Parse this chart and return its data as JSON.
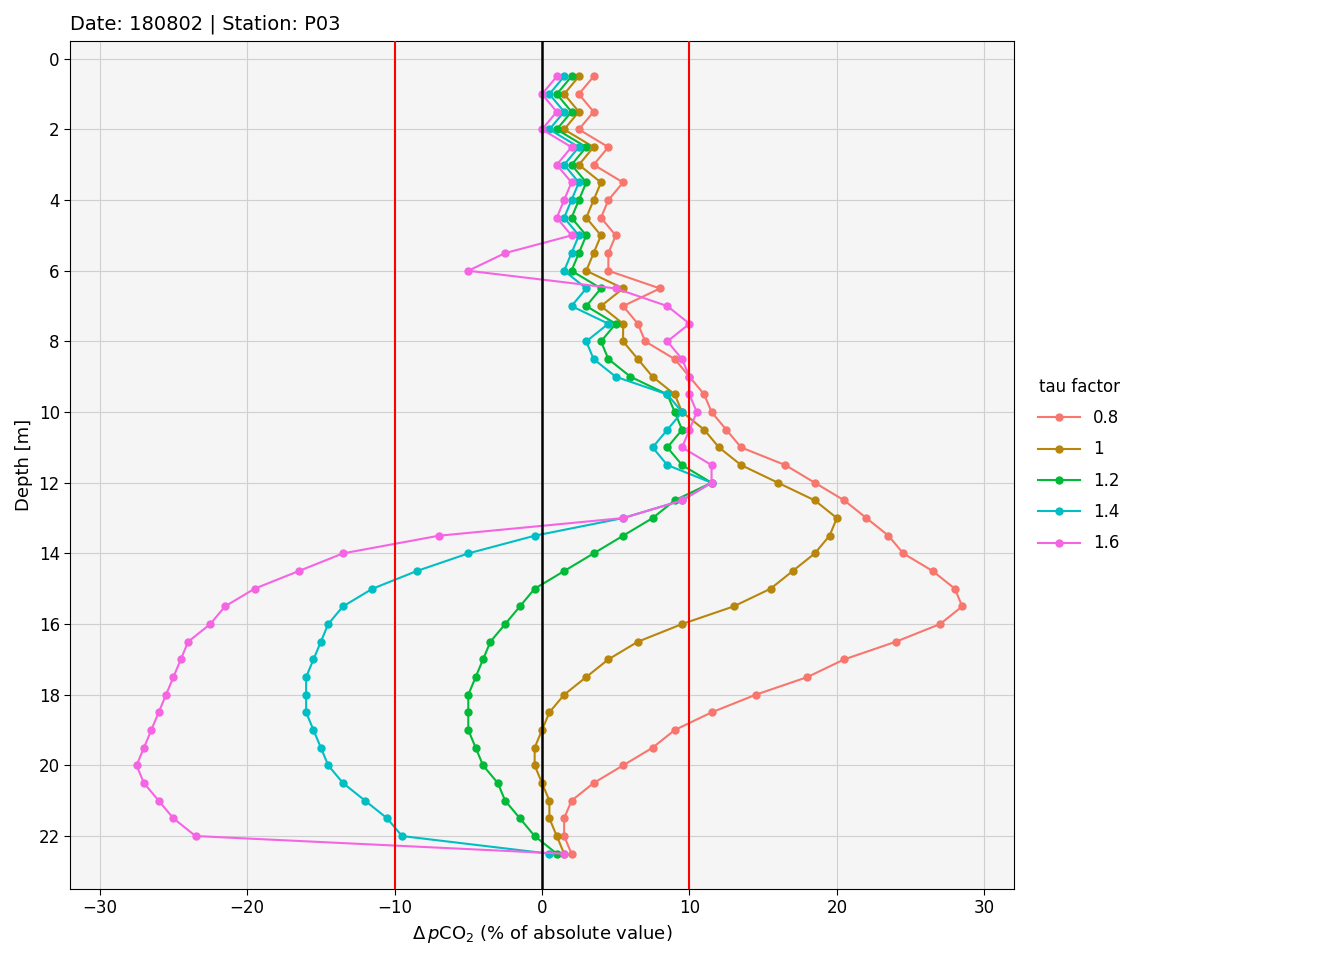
{
  "title": "Date: 180802 | Station: P03",
  "xlabel": "Δ pCO₂ (% of absolute value)",
  "ylabel": "Depth [m]",
  "xlim": [
    -32,
    32
  ],
  "ylim": [
    23.5,
    -0.5
  ],
  "xticks": [
    -30,
    -20,
    -10,
    0,
    10,
    20,
    30
  ],
  "yticks": [
    0,
    2,
    4,
    6,
    8,
    10,
    12,
    14,
    16,
    18,
    20,
    22
  ],
  "vlines": [
    -10,
    0,
    10
  ],
  "vline_colors": [
    "red",
    "black",
    "red"
  ],
  "background_color": "#ffffff",
  "panel_color": "#f5f5f5",
  "grid_color": "#d0d0d0",
  "series": [
    {
      "label": "0.8",
      "color": "#F8766D",
      "depth": [
        0.5,
        1.0,
        1.5,
        2.0,
        2.5,
        3.0,
        3.5,
        4.0,
        4.5,
        5.0,
        5.5,
        6.0,
        6.5,
        7.0,
        7.5,
        8.0,
        8.5,
        9.0,
        9.5,
        10.0,
        10.5,
        11.0,
        11.5,
        12.0,
        12.5,
        13.0,
        13.5,
        14.0,
        14.5,
        15.0,
        15.5,
        16.0,
        16.5,
        17.0,
        17.5,
        18.0,
        18.5,
        19.0,
        19.5,
        20.0,
        20.5,
        21.0,
        21.5,
        22.0,
        22.5
      ],
      "values": [
        3.5,
        2.5,
        3.5,
        2.5,
        4.5,
        3.5,
        5.5,
        4.5,
        4.0,
        5.0,
        4.5,
        4.5,
        8.0,
        5.5,
        6.5,
        7.0,
        9.0,
        10.0,
        11.0,
        11.5,
        12.5,
        13.5,
        16.5,
        18.5,
        20.5,
        22.0,
        23.5,
        24.5,
        26.5,
        28.0,
        28.5,
        27.0,
        24.0,
        20.5,
        18.0,
        14.5,
        11.5,
        9.0,
        7.5,
        5.5,
        3.5,
        2.0,
        1.5,
        1.5,
        2.0
      ]
    },
    {
      "label": "1",
      "color": "#B8860B",
      "depth": [
        0.5,
        1.0,
        1.5,
        2.0,
        2.5,
        3.0,
        3.5,
        4.0,
        4.5,
        5.0,
        5.5,
        6.0,
        6.5,
        7.0,
        7.5,
        8.0,
        8.5,
        9.0,
        9.5,
        10.0,
        10.5,
        11.0,
        11.5,
        12.0,
        12.5,
        13.0,
        13.5,
        14.0,
        14.5,
        15.0,
        15.5,
        16.0,
        16.5,
        17.0,
        17.5,
        18.0,
        18.5,
        19.0,
        19.5,
        20.0,
        20.5,
        21.0,
        21.5,
        22.0,
        22.5
      ],
      "values": [
        2.5,
        1.5,
        2.5,
        1.5,
        3.5,
        2.5,
        4.0,
        3.5,
        3.0,
        4.0,
        3.5,
        3.0,
        5.5,
        4.0,
        5.5,
        5.5,
        6.5,
        7.5,
        9.0,
        9.5,
        11.0,
        12.0,
        13.5,
        16.0,
        18.5,
        20.0,
        19.5,
        18.5,
        17.0,
        15.5,
        13.0,
        9.5,
        6.5,
        4.5,
        3.0,
        1.5,
        0.5,
        0.0,
        -0.5,
        -0.5,
        0.0,
        0.5,
        0.5,
        1.0,
        1.5
      ]
    },
    {
      "label": "1.2",
      "color": "#00BA38",
      "depth": [
        0.5,
        1.0,
        1.5,
        2.0,
        2.5,
        3.0,
        3.5,
        4.0,
        4.5,
        5.0,
        5.5,
        6.0,
        6.5,
        7.0,
        7.5,
        8.0,
        8.5,
        9.0,
        9.5,
        10.0,
        10.5,
        11.0,
        11.5,
        12.0,
        12.5,
        13.0,
        13.5,
        14.0,
        14.5,
        15.0,
        15.5,
        16.0,
        16.5,
        17.0,
        17.5,
        18.0,
        18.5,
        19.0,
        19.5,
        20.0,
        20.5,
        21.0,
        21.5,
        22.0,
        22.5
      ],
      "values": [
        2.0,
        1.0,
        2.0,
        1.0,
        3.0,
        2.0,
        3.0,
        2.5,
        2.0,
        3.0,
        2.5,
        2.0,
        4.0,
        3.0,
        5.0,
        4.0,
        4.5,
        6.0,
        8.5,
        9.0,
        9.5,
        8.5,
        9.5,
        11.5,
        9.0,
        7.5,
        5.5,
        3.5,
        1.5,
        -0.5,
        -1.5,
        -2.5,
        -3.5,
        -4.0,
        -4.5,
        -5.0,
        -5.0,
        -5.0,
        -4.5,
        -4.0,
        -3.0,
        -2.5,
        -1.5,
        -0.5,
        1.0
      ]
    },
    {
      "label": "1.4",
      "color": "#00BFC4",
      "depth": [
        0.5,
        1.0,
        1.5,
        2.0,
        2.5,
        3.0,
        3.5,
        4.0,
        4.5,
        5.0,
        5.5,
        6.0,
        6.5,
        7.0,
        7.5,
        8.0,
        8.5,
        9.0,
        9.5,
        10.0,
        10.5,
        11.0,
        11.5,
        12.0,
        12.5,
        13.0,
        13.5,
        14.0,
        14.5,
        15.0,
        15.5,
        16.0,
        16.5,
        17.0,
        17.5,
        18.0,
        18.5,
        19.0,
        19.5,
        20.0,
        20.5,
        21.0,
        21.5,
        22.0,
        22.5
      ],
      "values": [
        1.5,
        0.5,
        1.5,
        0.5,
        2.5,
        1.5,
        2.5,
        2.0,
        1.5,
        2.5,
        2.0,
        1.5,
        3.0,
        2.0,
        4.5,
        3.0,
        3.5,
        5.0,
        8.5,
        9.5,
        8.5,
        7.5,
        8.5,
        11.5,
        9.5,
        5.5,
        -0.5,
        -5.0,
        -8.5,
        -11.5,
        -13.5,
        -14.5,
        -15.0,
        -15.5,
        -16.0,
        -16.0,
        -16.0,
        -15.5,
        -15.0,
        -14.5,
        -13.5,
        -12.0,
        -10.5,
        -9.5,
        0.5
      ]
    },
    {
      "label": "1.6",
      "color": "#F564E3",
      "depth": [
        0.5,
        1.0,
        1.5,
        2.0,
        2.5,
        3.0,
        3.5,
        4.0,
        4.5,
        5.0,
        5.5,
        6.0,
        6.5,
        7.0,
        7.5,
        8.0,
        8.5,
        9.0,
        9.5,
        10.0,
        10.5,
        11.0,
        11.5,
        12.0,
        12.5,
        13.0,
        13.5,
        14.0,
        14.5,
        15.0,
        15.5,
        16.0,
        16.5,
        17.0,
        17.5,
        18.0,
        18.5,
        19.0,
        19.5,
        20.0,
        20.5,
        21.0,
        21.5,
        22.0,
        22.5
      ],
      "values": [
        1.0,
        0.0,
        1.0,
        0.0,
        2.0,
        1.0,
        2.0,
        1.5,
        1.0,
        2.0,
        -2.5,
        -5.0,
        5.0,
        8.5,
        10.0,
        8.5,
        9.5,
        10.0,
        10.0,
        10.5,
        10.0,
        9.5,
        11.5,
        11.5,
        9.5,
        5.5,
        -7.0,
        -13.5,
        -16.5,
        -19.5,
        -21.5,
        -22.5,
        -24.0,
        -24.5,
        -25.0,
        -25.5,
        -26.0,
        -26.5,
        -27.0,
        -27.5,
        -27.0,
        -26.0,
        -25.0,
        -23.5,
        1.5
      ]
    }
  ],
  "legend_title": "tau factor",
  "marker": "o",
  "markersize": 5,
  "linewidth": 1.5,
  "title_fontsize": 14,
  "axis_label_fontsize": 13,
  "tick_fontsize": 12,
  "legend_fontsize": 12
}
